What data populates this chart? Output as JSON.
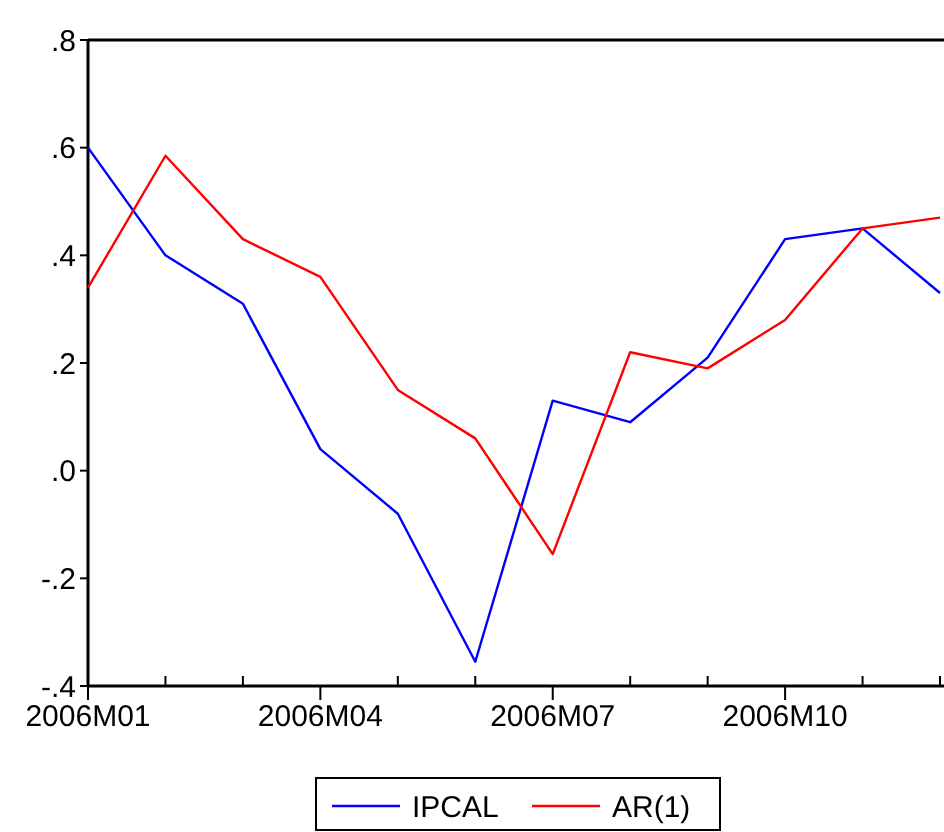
{
  "chart_data": {
    "type": "line",
    "categories": [
      "2006M01",
      null,
      null,
      "2006M04",
      null,
      null,
      "2006M07",
      null,
      null,
      "2006M10",
      null,
      null
    ],
    "series": [
      {
        "name": "IPCAL",
        "color": "#0000ff",
        "values": [
          0.6,
          0.4,
          0.31,
          0.04,
          -0.08,
          -0.355,
          0.13,
          0.09,
          0.21,
          0.43,
          0.45,
          0.33
        ]
      },
      {
        "name": "AR(1)",
        "color": "#ff0000",
        "values": [
          0.34,
          0.585,
          0.43,
          0.36,
          0.15,
          0.06,
          -0.155,
          0.22,
          0.19,
          0.28,
          0.45,
          0.47
        ]
      }
    ],
    "ylim": [
      -0.4,
      0.8
    ],
    "yticks": [
      {
        "value": -0.4,
        "label": "-.4"
      },
      {
        "value": -0.2,
        "label": "-.2"
      },
      {
        "value": 0,
        "label": ".0"
      },
      {
        "value": 0.2,
        "label": ".2"
      },
      {
        "value": 0.4,
        "label": ".4"
      },
      {
        "value": 0.6,
        "label": ".6"
      },
      {
        "value": 0.8,
        "label": ".8"
      }
    ],
    "grid": false,
    "legend": "bottom",
    "marker": "none",
    "line_style": "solid"
  }
}
